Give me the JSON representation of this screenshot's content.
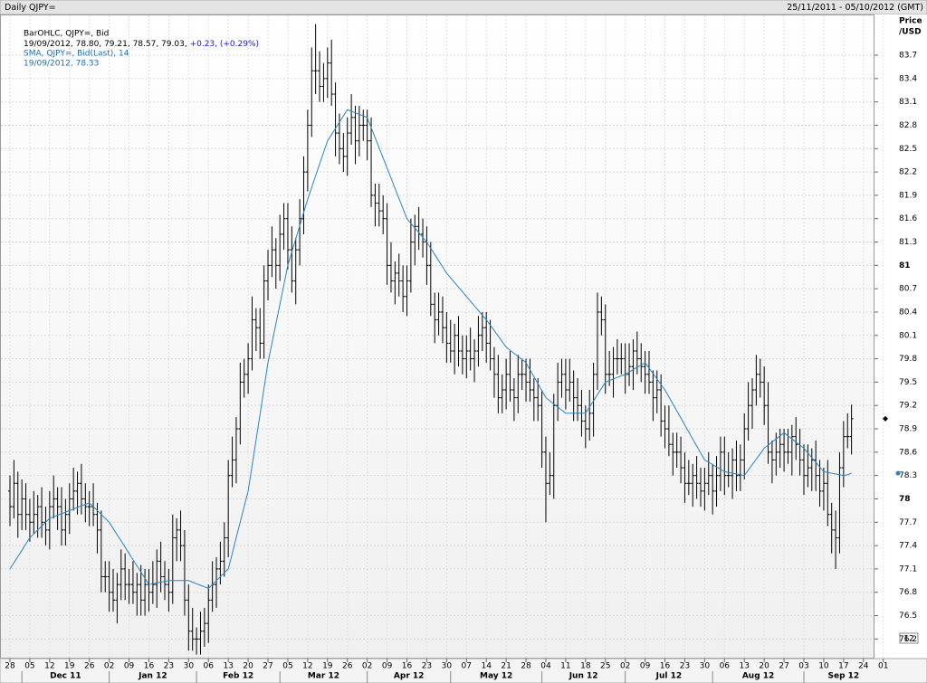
{
  "chart_data": {
    "type": "ohlc",
    "title": "Daily QJPY=",
    "date_range": "25/11/2011 - 05/10/2012 (GMT)",
    "y_label": "Price",
    "y_unit": "/USD",
    "zoom_label": "12",
    "legend": {
      "ohlc_title": "BarOHLC, QJPY=, Bid",
      "ohlc_values": "19/09/2012, 78.80, 79.21, 78.57, 79.03,",
      "ohlc_change": "+0.23, (+0.29%)",
      "sma_values": "19/09/2012, 78.33"
    },
    "color": "#000000",
    "ylim": [
      75.96,
      84.2
    ],
    "yticks": [
      76.2,
      76.5,
      76.8,
      77.1,
      77.4,
      77.7,
      78,
      78.3,
      78.6,
      78.9,
      79.2,
      79.5,
      79.8,
      80.1,
      80.4,
      80.7,
      81,
      81.3,
      81.6,
      81.9,
      82.2,
      82.5,
      82.8,
      83.1,
      83.4,
      83.7
    ],
    "grid": true,
    "xtick_labels": [
      "28",
      "05",
      "12",
      "19",
      "26",
      "02",
      "09",
      "16",
      "23",
      "30",
      "06",
      "13",
      "20",
      "27",
      "05",
      "12",
      "19",
      "26",
      "02",
      "09",
      "16",
      "23",
      "30",
      "07",
      "14",
      "21",
      "28",
      "04",
      "11",
      "18",
      "25",
      "02",
      "09",
      "16",
      "23",
      "30",
      "06",
      "13",
      "20",
      "27",
      "03",
      "10",
      "17",
      "24",
      "01"
    ],
    "month_labels": [
      "Dec 11",
      "Jan 12",
      "Feb 12",
      "Mar 12",
      "Apr 12",
      "May 12",
      "Jun 12",
      "Jul 12",
      "Aug 12",
      "Sep 12"
    ],
    "open": [
      78.1,
      77.9,
      78.2,
      77.8,
      78.0,
      77.8,
      77.7,
      77.8,
      77.9,
      77.7,
      77.6,
      77.9,
      78.0,
      77.9,
      77.6,
      77.8,
      78.0,
      78.1,
      78.2,
      78.0,
      77.9,
      77.9,
      77.8,
      77.6,
      77.0,
      77.0,
      76.8,
      76.7,
      76.9,
      77.1,
      76.9,
      76.9,
      76.8,
      76.9,
      76.7,
      76.9,
      76.8,
      76.9,
      77.2,
      77.0,
      76.9,
      76.8,
      77.5,
      77.6,
      77.4,
      76.7,
      76.3,
      76.2,
      76.2,
      76.3,
      76.4,
      76.7,
      76.9,
      77.1,
      77.2,
      77.5,
      78.3,
      78.5,
      78.9,
      79.5,
      79.6,
      79.8,
      80.3,
      80.2,
      80.0,
      80.8,
      81.0,
      81.2,
      81.0,
      81.4,
      81.6,
      81.2,
      80.8,
      81.2,
      81.6,
      82.2,
      82.8,
      83.5,
      83.5,
      83.3,
      83.4,
      83.6,
      83.2,
      82.7,
      82.5,
      82.4,
      82.7,
      82.9,
      82.6,
      82.8,
      82.8,
      82.6,
      81.9,
      81.8,
      81.7,
      81.6,
      81.0,
      80.8,
      80.9,
      80.8,
      80.6,
      80.8,
      81.3,
      81.5,
      81.4,
      81.3,
      81.0,
      80.5,
      80.3,
      80.4,
      80.2,
      80.0,
      79.9,
      80.1,
      79.9,
      79.8,
      79.9,
      79.8,
      79.9,
      80.1,
      80.2,
      80.0,
      79.8,
      79.6,
      79.3,
      79.4,
      79.6,
      79.4,
      79.3,
      79.6,
      79.6,
      79.5,
      79.4,
      79.3,
      79.2,
      78.6,
      78.2,
      78.3,
      79.2,
      79.5,
      79.6,
      79.4,
      79.5,
      79.3,
      79.2,
      79.0,
      78.9,
      79.1,
      79.6,
      80.4,
      80.3,
      79.6,
      79.6,
      79.8,
      79.8,
      79.8,
      79.6,
      79.7,
      79.9,
      79.8,
      79.7,
      79.6,
      79.5,
      79.3,
      79.4,
      79.0,
      78.9,
      78.7,
      78.6,
      78.6,
      78.4,
      78.2,
      78.2,
      78.3,
      78.2,
      78.1,
      78.2,
      78.3,
      78.1,
      78.3,
      78.6,
      78.3,
      78.3,
      78.5,
      78.3,
      78.5,
      78.9,
      79.2,
      79.4,
      79.6,
      79.5,
      79.2,
      78.6,
      78.5,
      78.6,
      78.7,
      78.6,
      78.6,
      78.8,
      78.7,
      78.5,
      78.3,
      78.4,
      78.5,
      78.3,
      78.1,
      78.2,
      77.8,
      77.6,
      77.5,
      78.4,
      78.8,
      78.8
    ],
    "high": [
      78.3,
      78.5,
      78.35,
      78.25,
      78.2,
      78.0,
      78.1,
      78.05,
      78.15,
      77.9,
      78.1,
      78.3,
      78.15,
      78.15,
      78.0,
      78.2,
      78.4,
      78.35,
      78.45,
      78.2,
      78.1,
      78.2,
      77.95,
      77.85,
      77.2,
      77.2,
      77.1,
      77.05,
      77.35,
      77.3,
      77.1,
      77.2,
      77.05,
      77.15,
      77.1,
      77.1,
      77.2,
      77.35,
      77.45,
      77.2,
      77.1,
      77.8,
      77.75,
      77.85,
      77.6,
      76.9,
      76.6,
      76.35,
      76.55,
      76.6,
      76.9,
      77.2,
      77.25,
      77.45,
      77.7,
      78.5,
      78.8,
      79.05,
      79.75,
      79.8,
      80.0,
      80.6,
      80.45,
      80.45,
      81.0,
      81.2,
      81.5,
      81.35,
      81.65,
      81.8,
      81.8,
      81.5,
      81.35,
      81.85,
      82.4,
      83.0,
      83.8,
      84.1,
      83.75,
      83.6,
      83.8,
      83.9,
      83.35,
      82.95,
      82.7,
      82.9,
      83.2,
      83.05,
      83.05,
      83.0,
      83.0,
      82.9,
      82.05,
      82.05,
      81.9,
      81.8,
      81.3,
      81.05,
      81.15,
      81.0,
      81.0,
      81.6,
      81.65,
      81.75,
      81.6,
      81.5,
      81.3,
      80.65,
      80.65,
      80.6,
      80.4,
      80.3,
      80.25,
      80.35,
      80.1,
      80.1,
      80.2,
      80.05,
      80.35,
      80.4,
      80.4,
      80.3,
      79.95,
      79.85,
      79.6,
      79.8,
      79.9,
      79.55,
      79.85,
      79.8,
      79.8,
      79.8,
      79.55,
      79.55,
      79.4,
      78.8,
      78.6,
      79.35,
      79.75,
      79.8,
      79.8,
      79.8,
      79.65,
      79.55,
      79.4,
      79.2,
      79.4,
      79.75,
      80.65,
      80.6,
      80.5,
      79.9,
      79.95,
      80.05,
      80.0,
      80.0,
      80.0,
      80.05,
      80.15,
      80.0,
      79.9,
      79.9,
      79.65,
      79.65,
      79.6,
      79.2,
      79.2,
      78.85,
      78.85,
      78.8,
      78.6,
      78.5,
      78.45,
      78.55,
      78.4,
      78.4,
      78.6,
      78.45,
      78.55,
      78.8,
      78.8,
      78.6,
      78.65,
      78.75,
      78.7,
      79.1,
      79.5,
      79.55,
      79.85,
      79.8,
      79.7,
      79.5,
      78.75,
      78.85,
      78.9,
      78.9,
      78.9,
      78.95,
      79.05,
      78.9,
      78.7,
      78.7,
      78.65,
      78.75,
      78.5,
      78.4,
      78.5,
      77.95,
      77.85,
      78.6,
      79.0,
      79.1,
      79.21
    ],
    "low": [
      77.65,
      77.75,
      77.5,
      77.6,
      77.6,
      77.45,
      77.55,
      77.5,
      77.5,
      77.4,
      77.35,
      77.75,
      77.6,
      77.4,
      77.4,
      77.55,
      77.85,
      77.8,
      77.8,
      77.7,
      77.65,
      77.65,
      77.3,
      76.8,
      76.8,
      76.55,
      76.55,
      76.4,
      76.7,
      76.7,
      76.65,
      76.65,
      76.5,
      76.5,
      76.5,
      76.55,
      76.65,
      76.6,
      76.8,
      76.7,
      76.55,
      76.65,
      77.2,
      77.2,
      76.5,
      76.05,
      76.05,
      76.0,
      76.0,
      76.1,
      76.15,
      76.55,
      76.6,
      76.9,
      77.0,
      77.25,
      78.15,
      78.2,
      78.7,
      79.3,
      79.35,
      79.65,
      79.9,
      79.8,
      79.8,
      80.55,
      80.85,
      80.7,
      80.8,
      81.2,
      80.95,
      80.65,
      80.5,
      81.0,
      81.4,
      81.95,
      82.65,
      83.2,
      83.1,
      83.1,
      83.15,
      83.05,
      82.4,
      82.3,
      82.2,
      82.15,
      82.55,
      82.3,
      82.4,
      82.6,
      82.35,
      81.75,
      81.5,
      81.5,
      81.4,
      80.75,
      80.65,
      80.5,
      80.6,
      80.4,
      80.35,
      80.65,
      81.0,
      81.2,
      81.1,
      80.75,
      80.35,
      80.0,
      80.1,
      80.0,
      79.75,
      79.75,
      79.6,
      79.7,
      79.6,
      79.55,
      79.65,
      79.5,
      79.7,
      79.9,
      79.75,
      79.65,
      79.3,
      79.1,
      79.1,
      79.15,
      79.25,
      79.0,
      79.1,
      79.4,
      79.25,
      79.25,
      79.0,
      79.0,
      78.4,
      77.7,
      78.05,
      78.0,
      79.0,
      79.3,
      79.15,
      79.25,
      79.0,
      79.0,
      78.8,
      78.65,
      78.75,
      78.8,
      79.4,
      80.1,
      79.35,
      79.45,
      79.3,
      79.6,
      79.6,
      79.35,
      79.45,
      79.4,
      79.6,
      79.5,
      79.35,
      79.35,
      79.0,
      79.1,
      78.8,
      78.65,
      78.55,
      78.3,
      78.4,
      78.2,
      77.95,
      78.05,
      77.9,
      78.0,
      77.9,
      77.85,
      78.05,
      77.8,
      77.9,
      78.1,
      78.05,
      78.15,
      78.0,
      78.1,
      78.1,
      78.25,
      78.75,
      78.9,
      79.2,
      79.3,
      78.95,
      78.45,
      78.2,
      78.3,
      78.4,
      78.35,
      78.45,
      78.3,
      78.5,
      78.3,
      78.05,
      78.15,
      78.1,
      78.1,
      77.9,
      77.85,
      77.65,
      77.3,
      77.1,
      77.3,
      78.15,
      78.65,
      78.57
    ],
    "close": [
      77.9,
      78.2,
      77.8,
      78.0,
      77.8,
      77.7,
      77.8,
      77.9,
      77.7,
      77.6,
      77.9,
      78.0,
      77.9,
      77.6,
      77.8,
      78.0,
      78.1,
      78.2,
      78.0,
      77.9,
      77.9,
      77.8,
      77.6,
      77.0,
      77.0,
      76.8,
      76.7,
      76.9,
      77.1,
      76.9,
      76.9,
      76.8,
      76.9,
      76.7,
      76.9,
      76.8,
      76.9,
      77.2,
      77.0,
      76.9,
      76.8,
      77.5,
      77.6,
      77.4,
      76.7,
      76.3,
      76.2,
      76.2,
      76.3,
      76.4,
      76.7,
      76.9,
      77.1,
      77.2,
      77.5,
      78.3,
      78.5,
      78.9,
      79.5,
      79.6,
      79.8,
      80.3,
      80.2,
      80.0,
      80.8,
      81.0,
      81.2,
      81.0,
      81.4,
      81.6,
      81.2,
      80.8,
      81.2,
      81.6,
      82.2,
      82.8,
      83.5,
      83.5,
      83.3,
      83.4,
      83.6,
      83.2,
      82.7,
      82.5,
      82.4,
      82.7,
      82.9,
      82.6,
      82.8,
      82.8,
      82.6,
      81.9,
      81.8,
      81.7,
      81.6,
      81.0,
      80.8,
      80.9,
      80.8,
      80.6,
      80.8,
      81.3,
      81.5,
      81.4,
      81.3,
      81.0,
      80.5,
      80.3,
      80.4,
      80.2,
      80.0,
      79.9,
      80.1,
      79.9,
      79.8,
      79.9,
      79.8,
      79.9,
      80.1,
      80.2,
      80.0,
      79.8,
      79.6,
      79.3,
      79.4,
      79.6,
      79.4,
      79.3,
      79.6,
      79.6,
      79.5,
      79.4,
      79.3,
      79.2,
      78.6,
      78.2,
      78.3,
      79.2,
      79.5,
      79.6,
      79.4,
      79.5,
      79.3,
      79.2,
      79.0,
      78.9,
      79.1,
      79.6,
      80.4,
      80.3,
      79.6,
      79.6,
      79.8,
      79.8,
      79.8,
      79.6,
      79.7,
      79.9,
      79.8,
      79.7,
      79.6,
      79.5,
      79.3,
      79.4,
      79.0,
      78.9,
      78.7,
      78.6,
      78.6,
      78.4,
      78.2,
      78.2,
      78.3,
      78.2,
      78.1,
      78.2,
      78.3,
      78.1,
      78.3,
      78.6,
      78.3,
      78.3,
      78.5,
      78.3,
      78.5,
      78.9,
      79.2,
      79.4,
      79.6,
      79.5,
      79.2,
      78.6,
      78.5,
      78.6,
      78.7,
      78.6,
      78.6,
      78.8,
      78.7,
      78.5,
      78.3,
      78.4,
      78.5,
      78.3,
      78.1,
      78.2,
      77.8,
      77.6,
      77.5,
      78.4,
      78.8,
      78.8,
      79.03
    ],
    "sma": {
      "name": "SMA, QJPY=, Bid(Last), 14",
      "color": "#2a86c0",
      "values": [
        77.1,
        77.18,
        77.26,
        77.34,
        77.42,
        77.5,
        77.55,
        77.6,
        77.65,
        77.7,
        77.75,
        77.77,
        77.79,
        77.81,
        77.83,
        77.85,
        77.87,
        77.89,
        77.91,
        77.93,
        77.95,
        77.9,
        77.85,
        77.8,
        77.75,
        77.7,
        77.62,
        77.54,
        77.46,
        77.38,
        77.3,
        77.22,
        77.14,
        77.06,
        76.98,
        76.9,
        76.91,
        76.92,
        76.93,
        76.94,
        76.95,
        76.95,
        76.95,
        76.95,
        76.95,
        76.95,
        76.93,
        76.91,
        76.89,
        76.87,
        76.85,
        76.9,
        76.95,
        77.0,
        77.05,
        77.1,
        77.3,
        77.5,
        77.7,
        77.9,
        78.1,
        78.43,
        78.76,
        79.09,
        79.42,
        79.75,
        80.0,
        80.25,
        80.5,
        80.75,
        81.0,
        81.17,
        81.34,
        81.51,
        81.68,
        81.85,
        82.0,
        82.15,
        82.3,
        82.45,
        82.6,
        82.68,
        82.76,
        82.84,
        82.92,
        83.0,
        82.98,
        82.96,
        82.94,
        82.92,
        82.9,
        82.77,
        82.64,
        82.51,
        82.38,
        82.25,
        82.12,
        81.99,
        81.86,
        81.73,
        81.6,
        81.54,
        81.48,
        81.42,
        81.36,
        81.3,
        81.22,
        81.14,
        81.06,
        80.98,
        80.9,
        80.84,
        80.78,
        80.72,
        80.66,
        80.6,
        80.54,
        80.48,
        80.42,
        80.36,
        80.3,
        80.23,
        80.16,
        80.09,
        80.02,
        79.95,
        79.91,
        79.87,
        79.83,
        79.79,
        79.75,
        79.66,
        79.57,
        79.48,
        79.39,
        79.3,
        79.26,
        79.22,
        79.18,
        79.14,
        79.1,
        79.1,
        79.1,
        79.1,
        79.1,
        79.1,
        79.18,
        79.26,
        79.34,
        79.42,
        79.5,
        79.52,
        79.54,
        79.56,
        79.58,
        79.6,
        79.63,
        79.66,
        79.69,
        79.72,
        79.75,
        79.68,
        79.61,
        79.54,
        79.47,
        79.4,
        79.31,
        79.22,
        79.13,
        79.04,
        78.95,
        78.86,
        78.77,
        78.68,
        78.59,
        78.5,
        78.47,
        78.44,
        78.41,
        78.38,
        78.35,
        78.34,
        78.33,
        78.32,
        78.31,
        78.3,
        78.37,
        78.44,
        78.51,
        78.58,
        78.65,
        78.69,
        78.73,
        78.77,
        78.81,
        78.85,
        78.81,
        78.77,
        78.73,
        78.69,
        78.65,
        78.59,
        78.53,
        78.47,
        78.41,
        78.35,
        78.34,
        78.33,
        78.32,
        78.31,
        78.3,
        78.31,
        78.33
      ]
    }
  }
}
